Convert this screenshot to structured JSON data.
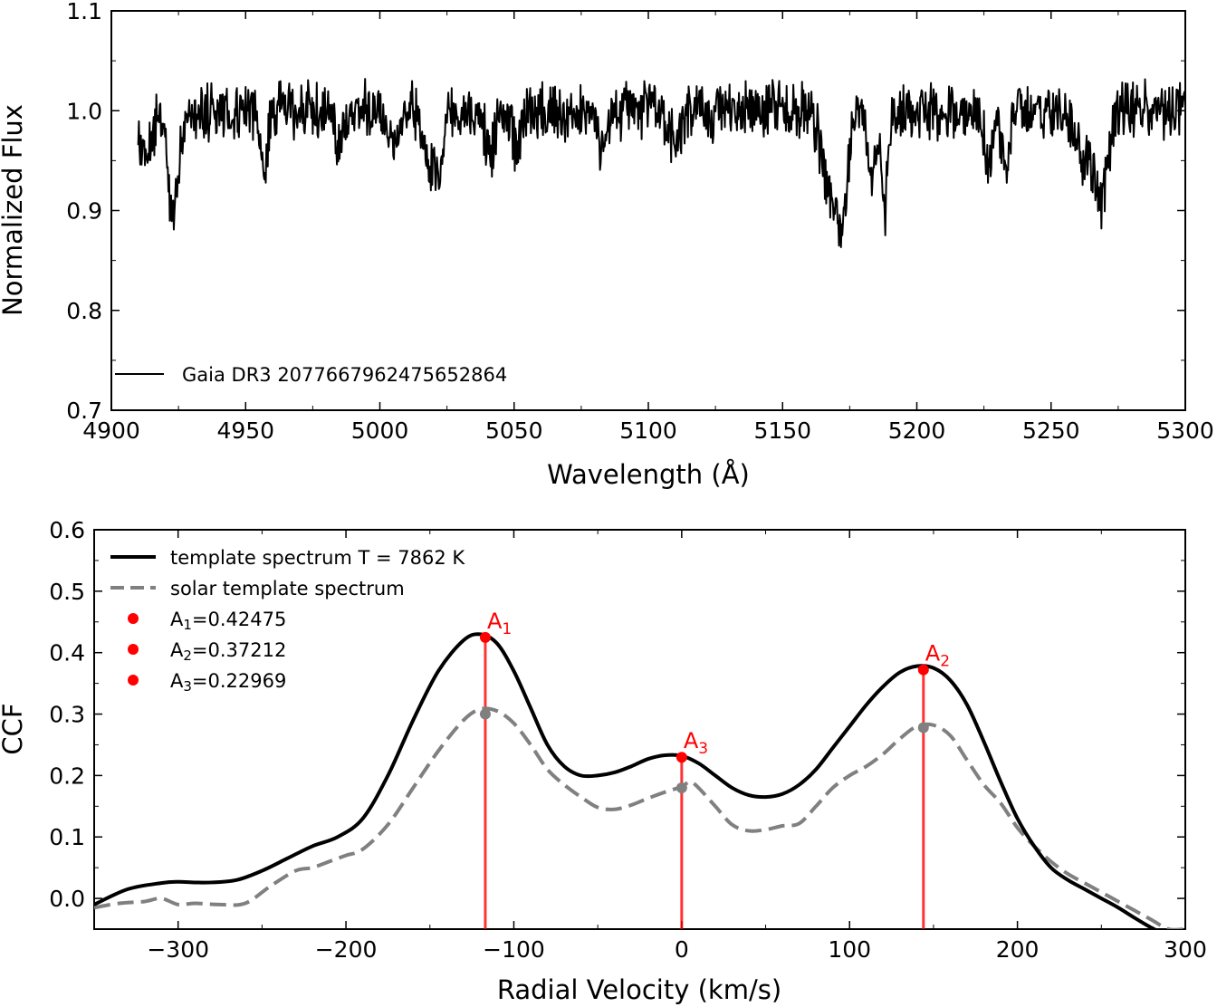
{
  "chart_data": [
    {
      "type": "line",
      "xlabel": "Wavelength (Å)",
      "ylabel": "Normalized Flux",
      "xlim": [
        4900,
        5300
      ],
      "ylim": [
        0.7,
        1.1
      ],
      "xticks": [
        4900,
        4950,
        5000,
        5050,
        5100,
        5150,
        5200,
        5250,
        5300
      ],
      "yticks": [
        0.7,
        0.8,
        0.9,
        1.0,
        1.1
      ],
      "xtick_labels": [
        "4900",
        "4950",
        "5000",
        "5050",
        "5100",
        "5150",
        "5200",
        "5250",
        "5300"
      ],
      "ytick_labels": [
        "0.7",
        "0.8",
        "0.9",
        "1.0",
        "1.1"
      ],
      "legend_position": "lower-left",
      "series": [
        {
          "name": "Gaia DR3 2077667962475652864",
          "color": "#000000",
          "style": "solid",
          "x_range": [
            4910,
            5300
          ],
          "continuum": 1.0,
          "noise_amplitude": 0.022,
          "absorption_features": [
            {
              "x": 4912,
              "depth": 0.04,
              "width": 3
            },
            {
              "x": 4922,
              "depth": 0.07,
              "width": 1.5
            },
            {
              "x": 4924,
              "depth": 0.05,
              "width": 2
            },
            {
              "x": 4957,
              "depth": 0.05,
              "width": 1.5
            },
            {
              "x": 4985,
              "depth": 0.04,
              "width": 1.5
            },
            {
              "x": 5005,
              "depth": 0.04,
              "width": 2
            },
            {
              "x": 5018,
              "depth": 0.06,
              "width": 1.5
            },
            {
              "x": 5022,
              "depth": 0.06,
              "width": 1.5
            },
            {
              "x": 5041,
              "depth": 0.05,
              "width": 1.5
            },
            {
              "x": 5051,
              "depth": 0.04,
              "width": 1.5
            },
            {
              "x": 5083,
              "depth": 0.04,
              "width": 1.5
            },
            {
              "x": 5110,
              "depth": 0.03,
              "width": 2
            },
            {
              "x": 5167,
              "depth": 0.08,
              "width": 2.5
            },
            {
              "x": 5172,
              "depth": 0.11,
              "width": 2
            },
            {
              "x": 5183,
              "depth": 0.06,
              "width": 1.5
            },
            {
              "x": 5188,
              "depth": 0.1,
              "width": 1.2
            },
            {
              "x": 5227,
              "depth": 0.06,
              "width": 1.5
            },
            {
              "x": 5233,
              "depth": 0.05,
              "width": 1.5
            },
            {
              "x": 5263,
              "depth": 0.05,
              "width": 4
            },
            {
              "x": 5269,
              "depth": 0.08,
              "width": 2
            }
          ]
        }
      ]
    },
    {
      "type": "line",
      "xlabel": "Radial Velocity (km/s)",
      "ylabel": "CCF",
      "xlim": [
        -350,
        300
      ],
      "ylim": [
        -0.05,
        0.6
      ],
      "xticks": [
        -300,
        -200,
        -100,
        0,
        100,
        200,
        300
      ],
      "yticks": [
        0.0,
        0.1,
        0.2,
        0.3,
        0.4,
        0.5,
        0.6
      ],
      "xtick_labels": [
        "−300",
        "−200",
        "−100",
        "0",
        "100",
        "200",
        "300"
      ],
      "ytick_labels": [
        "0.0",
        "0.1",
        "0.2",
        "0.3",
        "0.4",
        "0.5",
        "0.6"
      ],
      "legend_position": "upper-left",
      "series": [
        {
          "name": "template spectrum T = 7862 K",
          "color": "#000000",
          "style": "solid",
          "x": [
            -350,
            -330,
            -310,
            -300,
            -290,
            -280,
            -265,
            -250,
            -235,
            -220,
            -205,
            -190,
            -175,
            -160,
            -145,
            -130,
            -120,
            -110,
            -100,
            -90,
            -80,
            -70,
            -60,
            -50,
            -40,
            -30,
            -20,
            -10,
            0,
            10,
            20,
            30,
            40,
            50,
            60,
            70,
            80,
            90,
            100,
            110,
            120,
            130,
            140,
            150,
            160,
            170,
            180,
            190,
            200,
            210,
            220,
            230,
            240,
            250,
            260,
            270,
            280,
            290,
            300
          ],
          "y": [
            -0.01,
            0.015,
            0.025,
            0.027,
            0.026,
            0.026,
            0.03,
            0.045,
            0.065,
            0.085,
            0.1,
            0.13,
            0.2,
            0.29,
            0.37,
            0.42,
            0.43,
            0.415,
            0.37,
            0.31,
            0.25,
            0.215,
            0.2,
            0.2,
            0.205,
            0.215,
            0.227,
            0.233,
            0.232,
            0.22,
            0.2,
            0.18,
            0.168,
            0.165,
            0.17,
            0.185,
            0.21,
            0.245,
            0.28,
            0.315,
            0.345,
            0.368,
            0.378,
            0.375,
            0.355,
            0.315,
            0.255,
            0.19,
            0.13,
            0.085,
            0.05,
            0.03,
            0.015,
            0.0,
            -0.015,
            -0.032,
            -0.048,
            -0.06,
            -0.06
          ]
        },
        {
          "name": "solar template spectrum",
          "color": "#808080",
          "style": "dashed",
          "x": [
            -350,
            -335,
            -320,
            -310,
            -300,
            -290,
            -275,
            -260,
            -245,
            -230,
            -220,
            -210,
            -200,
            -190,
            -175,
            -160,
            -145,
            -130,
            -120,
            -110,
            -100,
            -90,
            -80,
            -70,
            -60,
            -50,
            -40,
            -30,
            -20,
            -10,
            0,
            5,
            10,
            20,
            30,
            40,
            50,
            60,
            70,
            80,
            90,
            100,
            110,
            120,
            130,
            140,
            150,
            160,
            170,
            180,
            190,
            200,
            210,
            220,
            230,
            240,
            250,
            260,
            270,
            280,
            290,
            300
          ],
          "y": [
            -0.015,
            -0.008,
            -0.005,
            0.0,
            -0.01,
            -0.008,
            -0.01,
            -0.008,
            0.02,
            0.045,
            0.05,
            0.06,
            0.07,
            0.08,
            0.12,
            0.18,
            0.24,
            0.29,
            0.308,
            0.305,
            0.285,
            0.25,
            0.21,
            0.185,
            0.165,
            0.148,
            0.145,
            0.152,
            0.163,
            0.173,
            0.182,
            0.19,
            0.18,
            0.15,
            0.12,
            0.11,
            0.112,
            0.118,
            0.122,
            0.15,
            0.18,
            0.2,
            0.215,
            0.235,
            0.26,
            0.28,
            0.282,
            0.265,
            0.225,
            0.185,
            0.155,
            0.115,
            0.085,
            0.06,
            0.04,
            0.025,
            0.01,
            -0.005,
            -0.02,
            -0.035,
            -0.05,
            -0.05
          ]
        },
        {
          "name": "A1=0.42475",
          "color": "#ff0000",
          "style": "marker",
          "x": [
            -117
          ],
          "y": [
            0.42475
          ]
        },
        {
          "name": "A2=0.37212",
          "color": "#ff0000",
          "style": "marker",
          "x": [
            144
          ],
          "y": [
            0.37212
          ]
        },
        {
          "name": "A3=0.22969",
          "color": "#ff0000",
          "style": "marker",
          "x": [
            0
          ],
          "y": [
            0.22969
          ]
        }
      ],
      "solar_peak_markers": [
        {
          "x": -117,
          "y": 0.3
        },
        {
          "x": 0,
          "y": 0.18
        },
        {
          "x": 144,
          "y": 0.278
        }
      ],
      "vertical_lines": [
        {
          "x": -117,
          "color": "#ff0000"
        },
        {
          "x": 0,
          "color": "#ff0000"
        },
        {
          "x": 144,
          "color": "#ff0000"
        }
      ],
      "annotations": [
        {
          "label": "A",
          "sub": "1",
          "x": -117,
          "y": 0.42475
        },
        {
          "label": "A",
          "sub": "3",
          "x": 0,
          "y": 0.22969
        },
        {
          "label": "A",
          "sub": "2",
          "x": 144,
          "y": 0.37212
        }
      ],
      "legend": [
        {
          "kind": "line",
          "color": "#000000",
          "dash": false,
          "text": "template spectrum T = 7862 K"
        },
        {
          "kind": "line",
          "color": "#808080",
          "dash": true,
          "text": "solar template spectrum"
        },
        {
          "kind": "marker",
          "color": "#ff0000",
          "label": "A",
          "sub": "1",
          "text": "=0.42475"
        },
        {
          "kind": "marker",
          "color": "#ff0000",
          "label": "A",
          "sub": "2",
          "text": "=0.37212"
        },
        {
          "kind": "marker",
          "color": "#ff0000",
          "label": "A",
          "sub": "3",
          "text": "=0.22969"
        }
      ]
    }
  ]
}
